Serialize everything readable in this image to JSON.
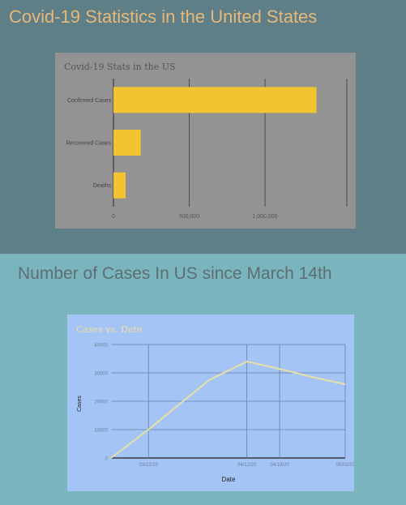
{
  "page": {
    "heading1": "Covid-19 Statistics in the United States",
    "heading2": "Number of Cases In US since March 14th"
  },
  "colors": {
    "section1_bg": "#5e7f87",
    "section2_bg": "#7ab5bd",
    "bar_fill": "#f4c430",
    "chart1_bg": "#939393",
    "chart2_bg": "#a3c4f5",
    "line": "#e8dfa8"
  },
  "chart_data": [
    {
      "type": "bar",
      "orientation": "horizontal",
      "title": "Covid-19 Stats in the US",
      "categories": [
        "Confirmed Cases",
        "Recovered Cases",
        "Deaths"
      ],
      "values": [
        1340000,
        180000,
        80000
      ],
      "xlim": [
        0,
        1540000
      ],
      "xticks": [
        0,
        500000,
        1000000
      ],
      "xtick_labels": [
        "0",
        "500,000",
        "1,000,000"
      ],
      "grid": true,
      "legend": "none"
    },
    {
      "type": "line",
      "title": "Cases vs. Date",
      "xlabel": "Date",
      "ylabel": "Cases",
      "x": [
        "03/14/20",
        "03/22/20",
        "03/29/20",
        "04/04/20",
        "04/12/20",
        "04/20/20",
        "04/26/20",
        "05/03/20"
      ],
      "y": [
        0,
        10000,
        19500,
        27500,
        34000,
        31000,
        28500,
        26000
      ],
      "xticks": [
        "03/22/20",
        "04/12/20",
        "04/19/20",
        "05/03/20"
      ],
      "ylim": [
        0,
        40000
      ],
      "yticks": [
        0,
        10000,
        20000,
        30000,
        40000
      ],
      "ytick_labels": [
        "0",
        "10000",
        "20000",
        "30000",
        "40000"
      ],
      "grid": true,
      "legend": "none"
    }
  ]
}
